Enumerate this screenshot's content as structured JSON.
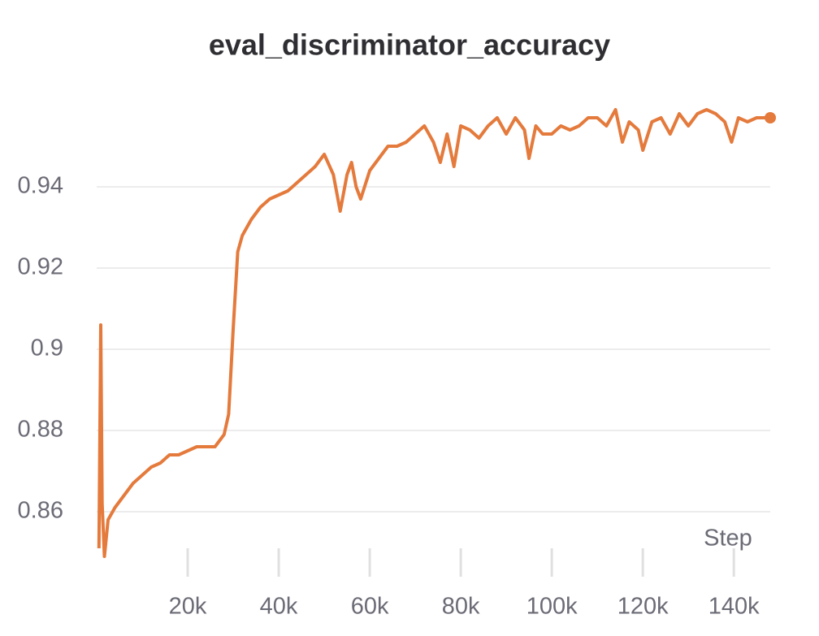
{
  "chart_data": {
    "type": "line",
    "title": "eval_discriminator_accuracy",
    "x_label": "Step",
    "color": "#e47a3c",
    "grid": true,
    "x": [
      500,
      900,
      1200,
      1700,
      2500,
      4000,
      6000,
      8000,
      10000,
      12000,
      14000,
      16000,
      18000,
      20000,
      22000,
      24000,
      26000,
      28000,
      29000,
      30000,
      31000,
      32000,
      34000,
      36000,
      38000,
      40000,
      42000,
      44000,
      46000,
      48000,
      50000,
      52000,
      53500,
      55000,
      56000,
      57000,
      58000,
      60000,
      62000,
      64000,
      66000,
      68000,
      70000,
      72000,
      74000,
      75500,
      77000,
      78500,
      80000,
      82000,
      84000,
      86000,
      88000,
      90000,
      92000,
      94000,
      95000,
      96500,
      98000,
      100000,
      102000,
      104000,
      106000,
      108000,
      110000,
      112000,
      114000,
      115500,
      117000,
      119000,
      120000,
      122000,
      124000,
      126000,
      128000,
      130000,
      132000,
      134000,
      136000,
      138000,
      139500,
      141000,
      143000,
      145000,
      148000
    ],
    "values": [
      0.851,
      0.906,
      0.862,
      0.849,
      0.858,
      0.861,
      0.864,
      0.867,
      0.869,
      0.871,
      0.872,
      0.874,
      0.874,
      0.875,
      0.876,
      0.876,
      0.876,
      0.879,
      0.884,
      0.905,
      0.924,
      0.928,
      0.932,
      0.935,
      0.937,
      0.938,
      0.939,
      0.941,
      0.943,
      0.945,
      0.948,
      0.943,
      0.934,
      0.943,
      0.946,
      0.94,
      0.937,
      0.944,
      0.947,
      0.95,
      0.95,
      0.951,
      0.953,
      0.955,
      0.951,
      0.946,
      0.953,
      0.945,
      0.955,
      0.954,
      0.952,
      0.955,
      0.957,
      0.953,
      0.957,
      0.954,
      0.947,
      0.955,
      0.953,
      0.953,
      0.955,
      0.954,
      0.955,
      0.957,
      0.957,
      0.955,
      0.959,
      0.951,
      0.956,
      0.954,
      0.949,
      0.956,
      0.957,
      0.953,
      0.958,
      0.955,
      0.958,
      0.959,
      0.958,
      0.956,
      0.951,
      0.957,
      0.956,
      0.957,
      0.957
    ],
    "xlim": [
      0,
      148000
    ],
    "xticks": [
      {
        "value": 20000,
        "label": "20k"
      },
      {
        "value": 40000,
        "label": "40k"
      },
      {
        "value": 60000,
        "label": "60k"
      },
      {
        "value": 80000,
        "label": "80k"
      },
      {
        "value": 100000,
        "label": "100k"
      },
      {
        "value": 120000,
        "label": "120k"
      },
      {
        "value": 140000,
        "label": "140k"
      }
    ],
    "ylim": [
      0.848,
      0.962
    ],
    "yticks": [
      0.86,
      0.88,
      0.9,
      0.92,
      0.94
    ]
  }
}
